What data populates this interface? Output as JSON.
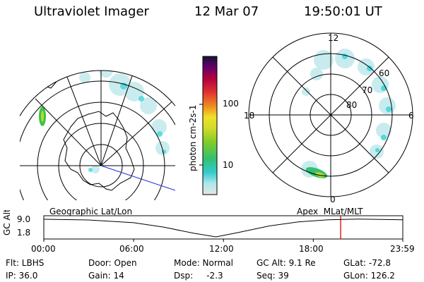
{
  "header": {
    "title": "Ultraviolet Imager",
    "date": "12 Mar 07",
    "time": "19:50:01 UT"
  },
  "colorbar": {
    "label": "photon cm-2s-1",
    "ticks": [
      "100",
      "10"
    ],
    "colors": [
      "#e0e0e0",
      "#9fe8e8",
      "#33cccc",
      "#33c07a",
      "#7fcc2a",
      "#c8dc2a",
      "#f0f02a",
      "#f08c1e",
      "#e83232",
      "#b8003c",
      "#6a006e",
      "#18183c"
    ]
  },
  "map_left": {
    "caption": "Geographic Lat/Lon"
  },
  "map_right": {
    "caption": "Apex  MLat/MLT",
    "mlt_labels": {
      "top": "12",
      "left": "18",
      "right": "6",
      "bottom": "0"
    },
    "lat_labels": [
      "60",
      "70",
      "80"
    ]
  },
  "chart_data": {
    "type": "line",
    "title": "",
    "ylabel": "GC Alt",
    "ytick_labels": [
      "9.0",
      "1.8"
    ],
    "xtick_labels": [
      "00:00",
      "06:00",
      "12:00",
      "18:00",
      "23:59"
    ],
    "x_hours": [
      0,
      3,
      6,
      8,
      10,
      11.5,
      13,
      15,
      17,
      19,
      21,
      23.98
    ],
    "y": [
      9.0,
      8.7,
      7.6,
      5.8,
      3.3,
      1.8,
      3.6,
      6.2,
      7.9,
      8.8,
      9.1,
      8.8
    ],
    "current_time_hours": 19.83,
    "current_time_color": "#e02020",
    "ylim": [
      1.8,
      9.0
    ],
    "xlim": [
      0,
      23.98
    ]
  },
  "footer": {
    "rows": [
      [
        "Flt: LBHS",
        "Door: Open",
        "Mode: Normal",
        "GC Alt: 9.1 Re",
        "GLat: -72.8"
      ],
      [
        "IP: 36.0",
        "Gain: 14",
        "Dsp:     -2.3",
        "Seq: 39",
        "GLon: 126.2"
      ]
    ]
  }
}
